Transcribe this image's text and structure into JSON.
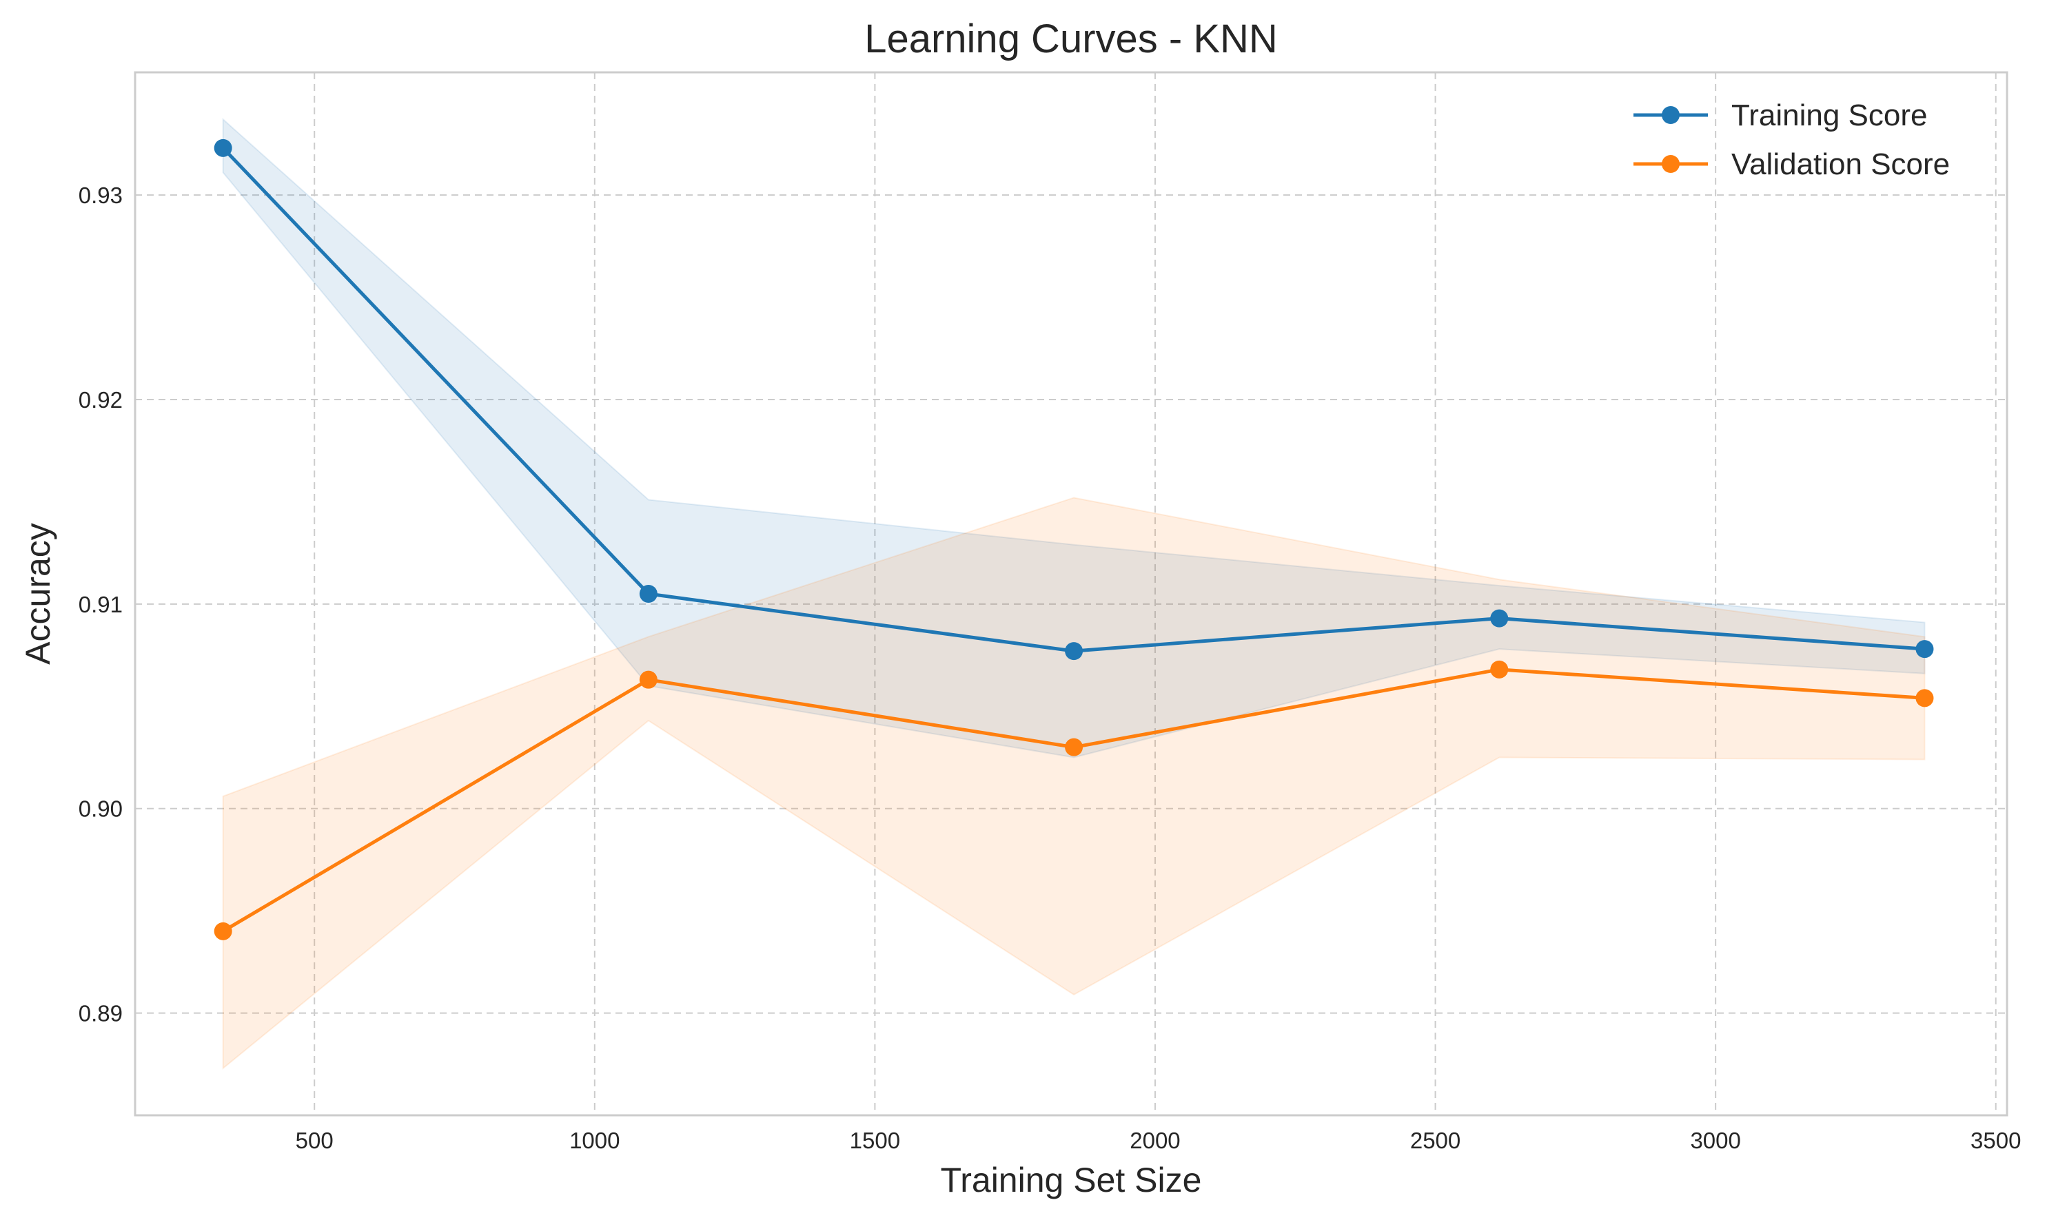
{
  "chart_data": {
    "type": "line",
    "title": "Learning Curves - KNN",
    "xlabel": "Training Set Size",
    "ylabel": "Accuracy",
    "xlim": [
      180,
      3520
    ],
    "ylim": [
      0.885,
      0.936
    ],
    "xticks": [
      500,
      1000,
      1500,
      2000,
      2500,
      3000,
      3500
    ],
    "xtick_labels": [
      "500",
      "1000",
      "1500",
      "2000",
      "2500",
      "3000",
      "3500"
    ],
    "yticks": [
      0.89,
      0.9,
      0.91,
      0.92,
      0.93
    ],
    "ytick_labels": [
      "0.89",
      "0.90",
      "0.91",
      "0.92",
      "0.93"
    ],
    "grid": true,
    "legend_position": "top-right",
    "x": [
      337,
      1096,
      1855,
      2614,
      3373
    ],
    "series": [
      {
        "name": "Training Score",
        "color": "#1f77b4",
        "marker": "circle",
        "values": [
          0.9323,
          0.9105,
          0.9077,
          0.9093,
          0.9078
        ],
        "band_upper": [
          0.9337,
          0.9151,
          0.9129,
          0.9109,
          0.9091
        ],
        "band_lower": [
          0.9311,
          0.906,
          0.9025,
          0.9078,
          0.9066
        ]
      },
      {
        "name": "Validation Score",
        "color": "#ff7f0e",
        "marker": "circle",
        "values": [
          0.894,
          0.9063,
          0.903,
          0.9068,
          0.9054
        ],
        "band_upper": [
          0.9006,
          0.9084,
          0.9152,
          0.9112,
          0.9084
        ],
        "band_lower": [
          0.8873,
          0.9043,
          0.8909,
          0.9025,
          0.9024
        ]
      }
    ]
  }
}
